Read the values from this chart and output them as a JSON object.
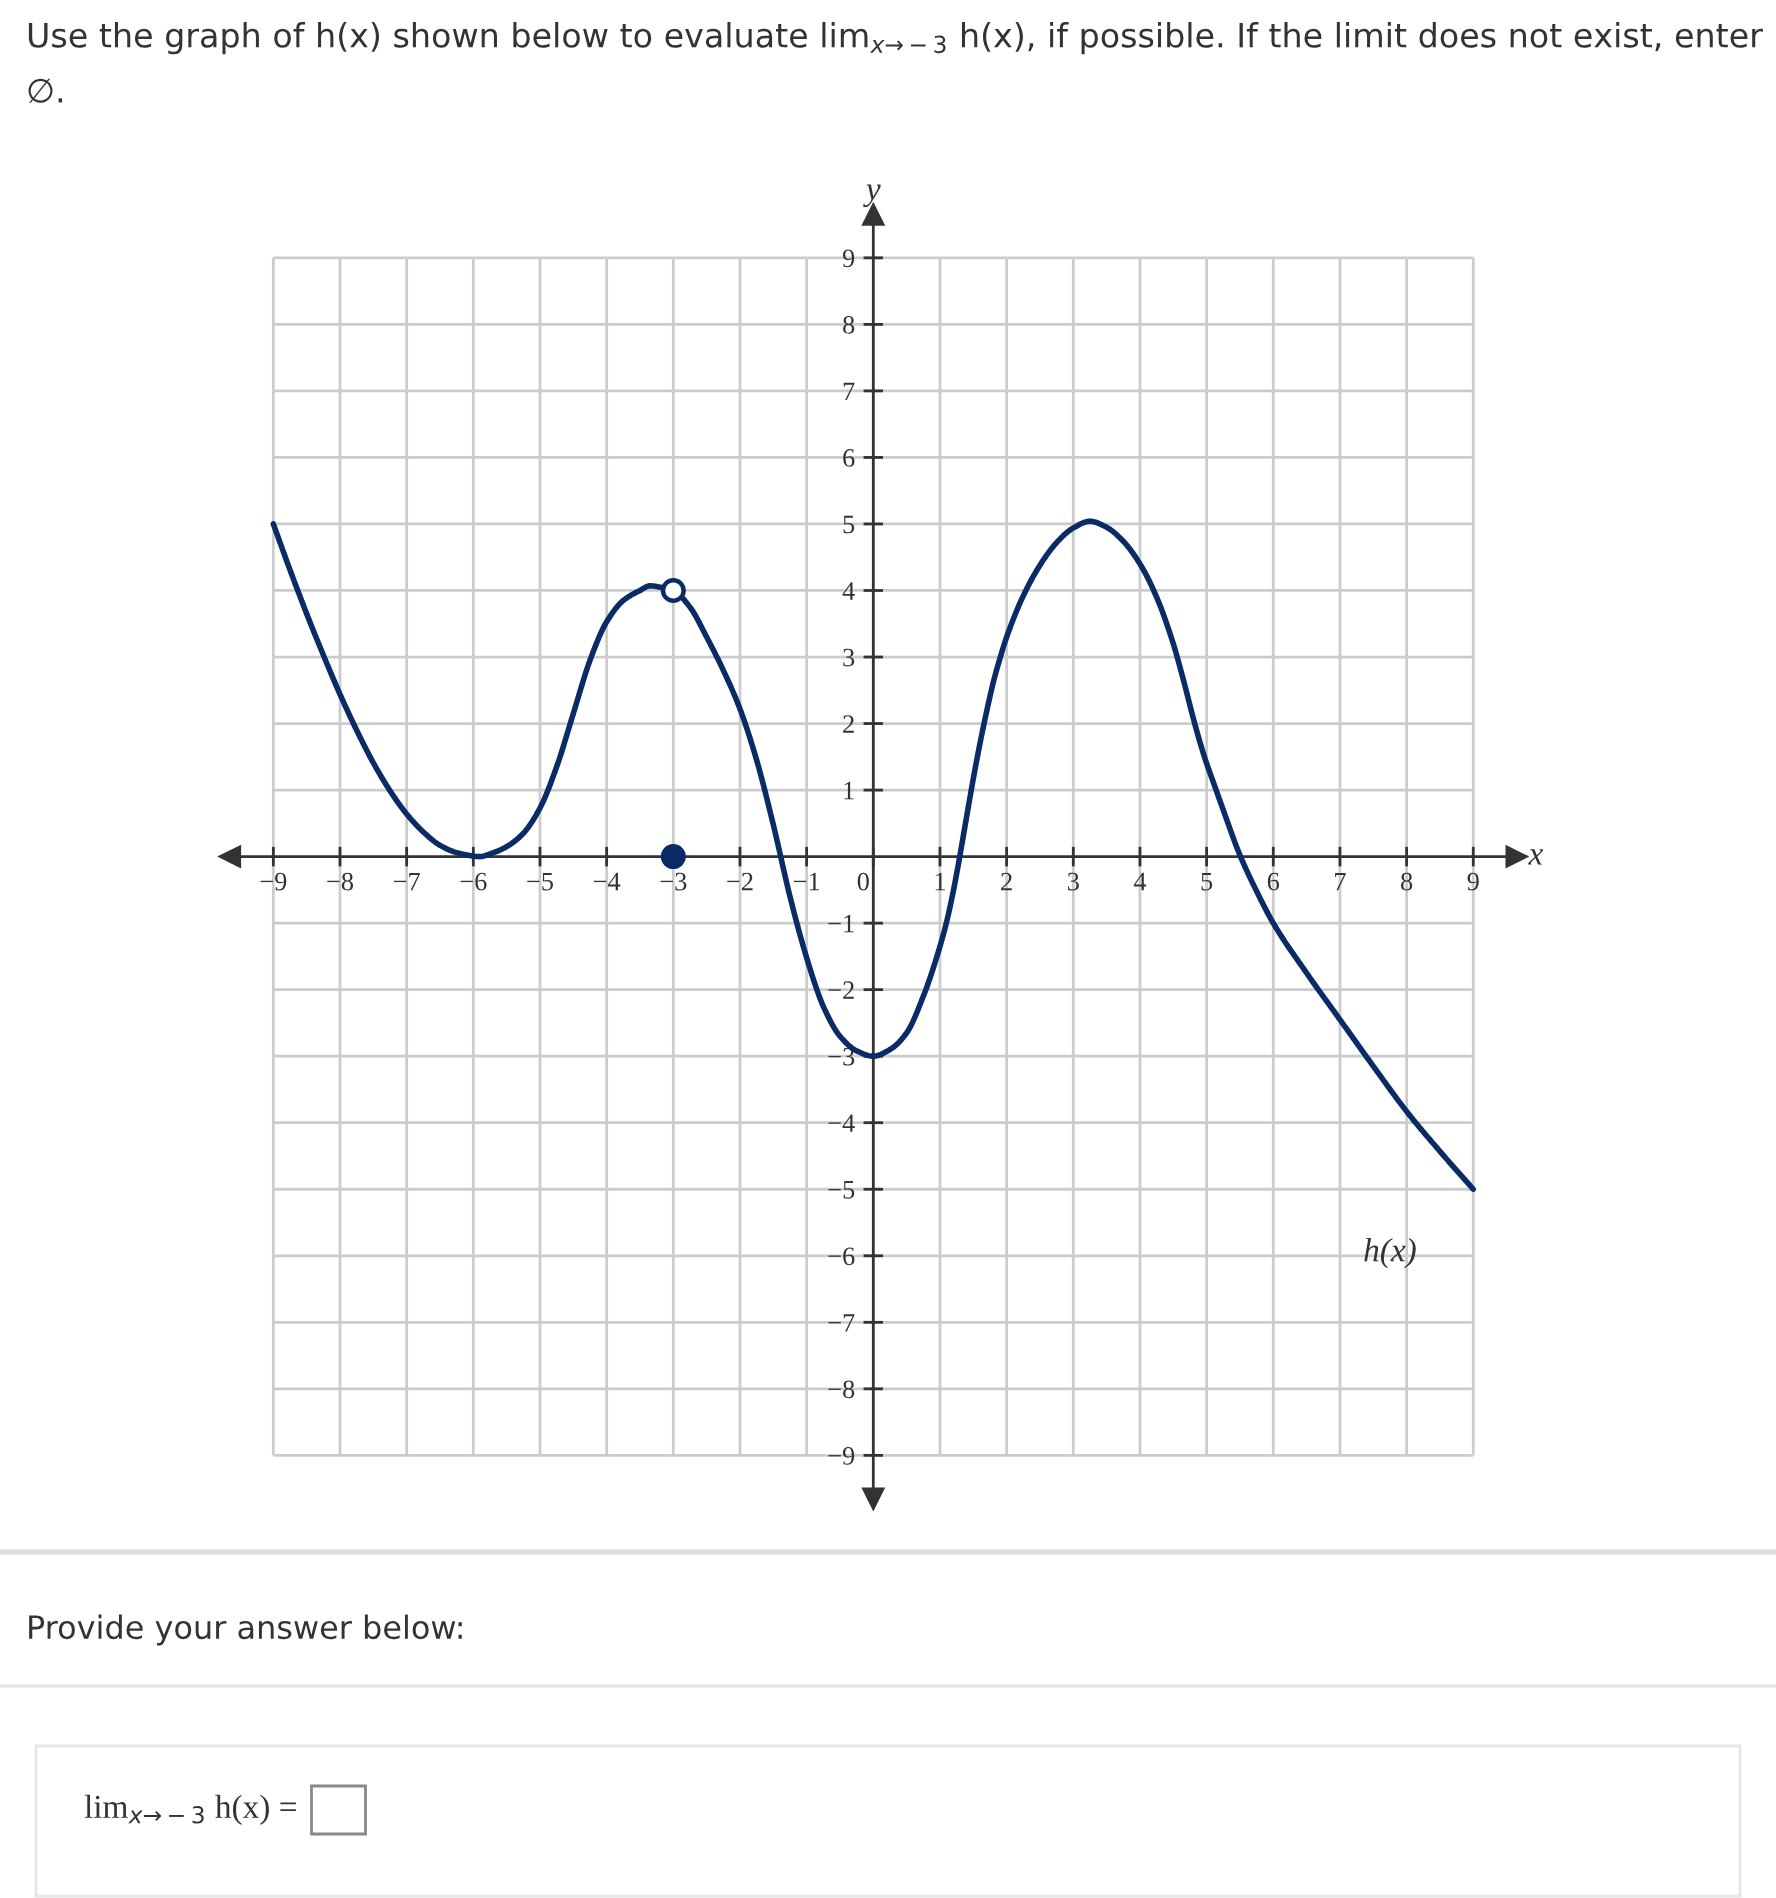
{
  "chart_data": {
    "type": "line",
    "title": "Use the graph of h(x) shown below to evaluate lim$_{x→−3}$ h(x), if possible. If the limit does not exist, enter ∅.",
    "xlabel": "x",
    "ylabel": "y",
    "annotations": [
      "Provide your answer below:",
      "lim$_{x→−3}$ h(x) ="
    ],
    "xlim": [
      -9.65,
      9.65
    ],
    "ylim": [
      -9.65,
      9.65
    ],
    "xticks": [
      {
        "value": -9,
        "label": "−9"
      },
      {
        "value": -8,
        "label": "−8"
      },
      {
        "value": -7,
        "label": "−7"
      },
      {
        "value": -6,
        "label": "−6"
      },
      {
        "value": -5,
        "label": "−5"
      },
      {
        "value": -4,
        "label": "−4"
      },
      {
        "value": -3,
        "label": "−3"
      },
      {
        "value": -2,
        "label": "−2"
      },
      {
        "value": -1,
        "label": "−1"
      },
      0,
      1,
      2,
      3,
      4,
      5,
      6,
      7,
      8,
      9
    ],
    "yticks": [
      {
        "value": -9,
        "label": "−9"
      },
      {
        "value": -8,
        "label": "−8"
      },
      {
        "value": -7,
        "label": "−7"
      },
      {
        "value": -6,
        "label": "−6"
      },
      {
        "value": -5,
        "label": "−5"
      },
      {
        "value": -4,
        "label": "−4"
      },
      {
        "value": -3,
        "label": "−3"
      },
      {
        "value": -2,
        "label": "−2"
      },
      {
        "value": -1,
        "label": "−1"
      },
      1,
      2,
      3,
      4,
      5,
      6,
      7,
      8,
      9
    ],
    "grid": true,
    "marker": "circle",
    "series": [
      {
        "name": "h(x)",
        "color": "#0b2b66",
        "marker": "none",
        "x": [
          -9,
          -8.75,
          -8.5,
          -8.25,
          -8,
          -7.75,
          -7.5,
          -7.25,
          -7,
          -6.75,
          -6.5,
          -6.25,
          -5.9,
          -5.75,
          -5.5,
          -5.25,
          -5,
          -4.75,
          -4.5,
          -4.25,
          -4,
          -3.75,
          -3.5,
          -3.35,
          -3.2,
          -3,
          -2.75,
          -2.5,
          -2.25,
          -2,
          -1.75,
          -1.5,
          -1.25,
          -1,
          -0.75,
          -0.5,
          -0.25,
          0,
          0.25,
          0.5,
          0.75,
          1,
          1.1,
          1.2,
          1.3,
          1.4,
          1.5,
          1.6,
          1.7,
          1.8,
          1.9,
          2,
          2.25,
          2.5,
          2.75,
          3,
          3.25,
          3.5,
          3.75,
          4,
          4.25,
          4.5,
          4.6,
          4.7,
          4.8,
          4.9,
          5,
          5.1,
          5.25,
          5.5,
          5.75,
          6,
          6.5,
          7,
          7.5,
          8,
          8.5,
          9
        ],
        "values": [
          5,
          4.31,
          3.65,
          3.03,
          2.44,
          1.9,
          1.41,
          0.99,
          0.64,
          0.37,
          0.17,
          0.06,
          0,
          0.04,
          0.15,
          0.35,
          0.73,
          1.35,
          2.15,
          2.95,
          3.53,
          3.85,
          4.0,
          4.07,
          4.05,
          4,
          3.75,
          3.3,
          2.8,
          2.22,
          1.45,
          0.48,
          -0.6,
          -1.52,
          -2.25,
          -2.7,
          -2.92,
          -3,
          -2.9,
          -2.65,
          -2.1,
          -1.35,
          -0.98,
          -0.52,
          0.02,
          0.6,
          1.17,
          1.7,
          2.18,
          2.62,
          2.98,
          3.3,
          3.92,
          4.38,
          4.72,
          4.94,
          5.04,
          4.95,
          4.74,
          4.4,
          3.9,
          3.2,
          2.85,
          2.47,
          2.08,
          1.72,
          1.4,
          1.12,
          0.7,
          0.02,
          -0.52,
          -1.0,
          -1.75,
          -2.45,
          -3.15,
          -3.83,
          -4.43,
          -5
        ]
      },
      {
        "type": "scatter",
        "color": "#ffffff",
        "x": [
          -3
        ],
        "values": [
          4
        ]
      },
      {
        "type": "scatter",
        "color": "#0b2b66",
        "x": [
          -3
        ],
        "values": [
          0
        ]
      }
    ]
  }
}
